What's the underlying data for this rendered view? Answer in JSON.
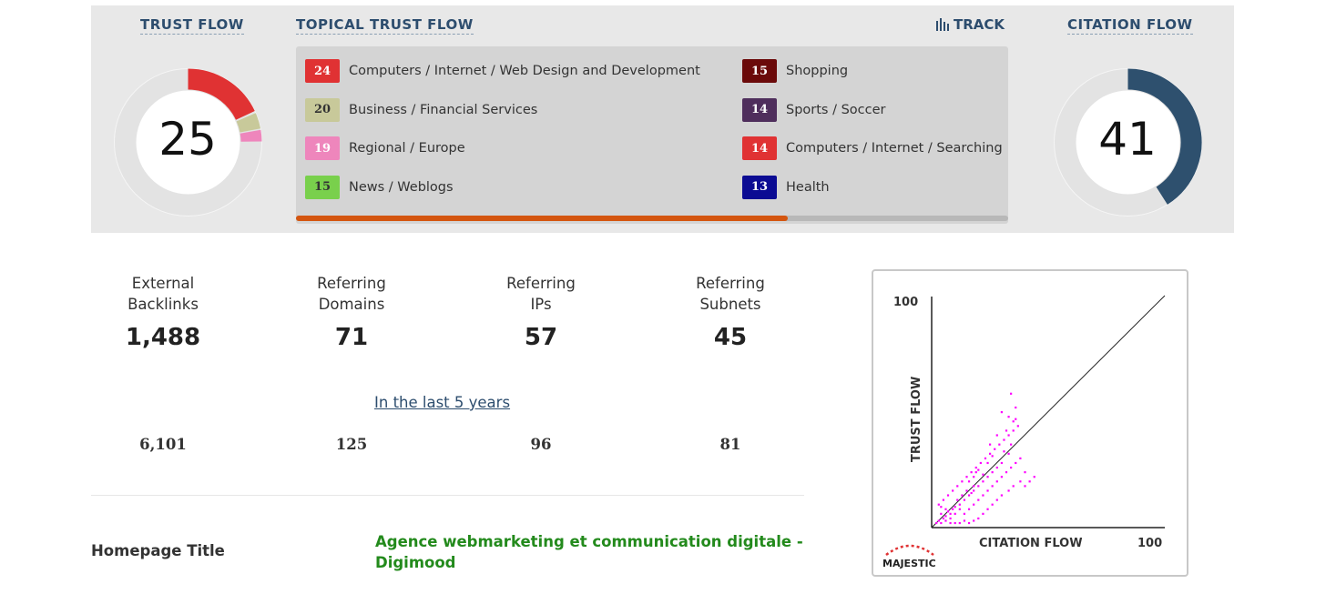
{
  "trust_flow": {
    "title": "TRUST FLOW",
    "value": "25",
    "color": "#e03233"
  },
  "citation_flow": {
    "title": "CITATION FLOW",
    "value": "41",
    "fraction": 0.41,
    "color": "#2e506e"
  },
  "topical": {
    "title": "TOPICAL TRUST FLOW",
    "track_label": "TRACK",
    "progress_fraction": 0.69,
    "items": [
      {
        "score": "24",
        "label": "Computers / Internet / Web Design and Development",
        "color": "#e03233",
        "text_color": "#ffffff"
      },
      {
        "score": "20",
        "label": "Business / Financial Services",
        "color": "#c8c99a",
        "text_color": "#333333"
      },
      {
        "score": "19",
        "label": "Regional / Europe",
        "color": "#ee86bc",
        "text_color": "#ffffff"
      },
      {
        "score": "15",
        "label": "News / Weblogs",
        "color": "#79d04c",
        "text_color": "#333333"
      },
      {
        "score": "15",
        "label": "Shopping",
        "color": "#6b0a0a",
        "text_color": "#ffffff"
      },
      {
        "score": "14",
        "label": "Sports / Soccer",
        "color": "#4f2e5c",
        "text_color": "#ffffff"
      },
      {
        "score": "14",
        "label": "Computers / Internet / Searching",
        "color": "#e03233",
        "text_color": "#ffffff"
      },
      {
        "score": "13",
        "label": "Health",
        "color": "#0b0b93",
        "text_color": "#ffffff"
      }
    ]
  },
  "stats": [
    {
      "label_line1": "External",
      "label_line2": "Backlinks",
      "value": "1,488",
      "historic": "6,101"
    },
    {
      "label_line1": "Referring",
      "label_line2": "Domains",
      "value": "71",
      "historic": "125"
    },
    {
      "label_line1": "Referring",
      "label_line2": "IPs",
      "value": "57",
      "historic": "96"
    },
    {
      "label_line1": "Referring",
      "label_line2": "Subnets",
      "value": "45",
      "historic": "81"
    }
  ],
  "historic_link": "In the last 5 years",
  "homepage": {
    "label": "Homepage Title",
    "value": "Agence webmarketing et communication digitale - Digimood"
  },
  "scatter": {
    "y_axis_label": "TRUST FLOW",
    "x_axis_label": "CITATION FLOW",
    "y_max_label": "100",
    "x_max_label": "100",
    "brand": "MAJESTIC",
    "point_color": "#ff00ff"
  }
}
